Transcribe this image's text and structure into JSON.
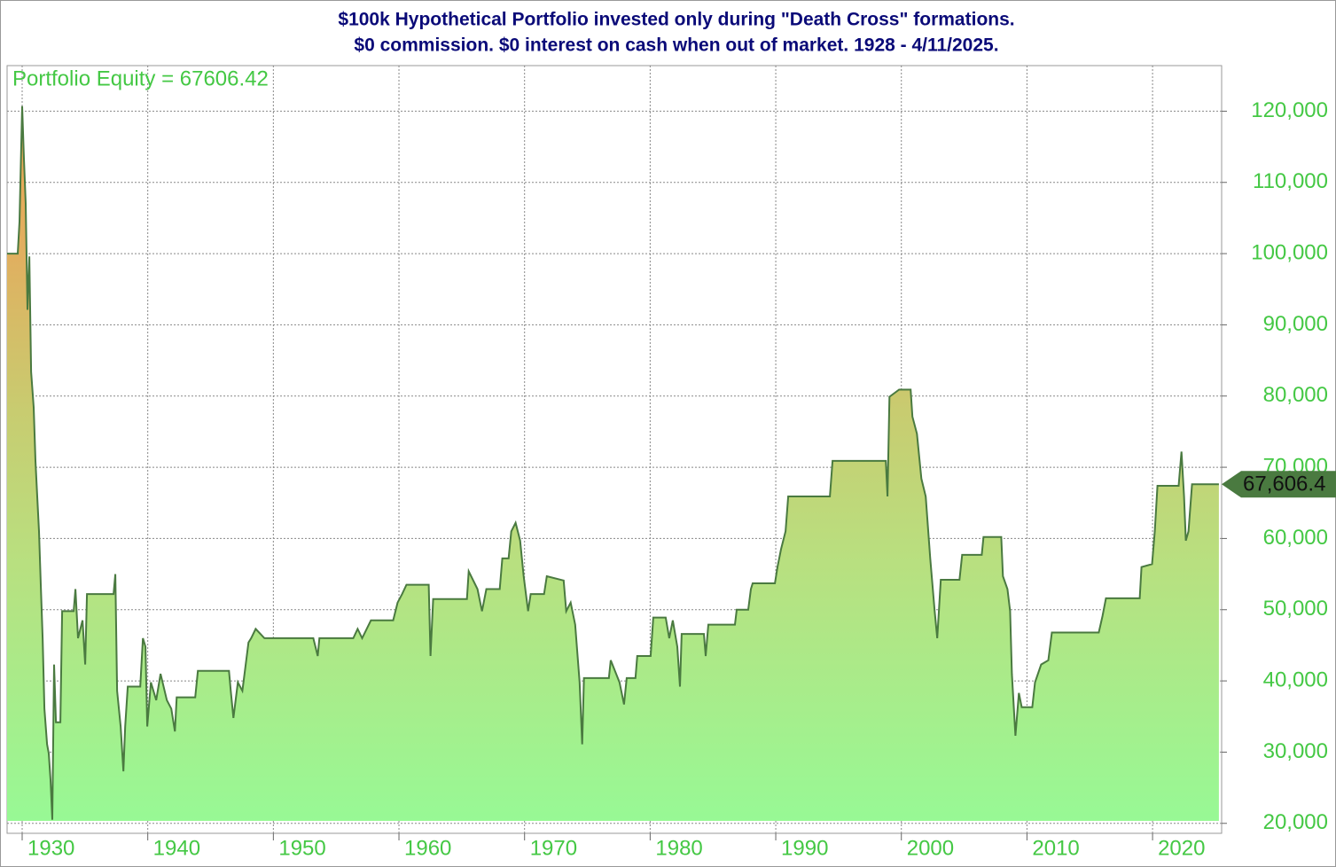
{
  "chart_data": {
    "type": "area",
    "title": "$100k Hypothetical Portfolio invested only during \"Death Cross\" formations.",
    "subtitle": "$0 commission. $0 interest on cash when out of market. 1928 - 4/11/2025.",
    "x": [
      1928.8,
      1929.65,
      1929.79,
      1930.0,
      1930.14,
      1930.28,
      1930.42,
      1930.57,
      1930.71,
      1930.92,
      1931.06,
      1931.2,
      1931.34,
      1931.48,
      1931.63,
      1931.77,
      1931.98,
      1932.12,
      1932.26,
      1932.4,
      1932.54,
      1932.69,
      1933.04,
      1933.18,
      1934.1,
      1934.24,
      1934.45,
      1934.81,
      1935.02,
      1935.16,
      1937.28,
      1937.42,
      1937.56,
      1937.84,
      1938.06,
      1938.2,
      1938.41,
      1939.4,
      1939.61,
      1939.82,
      1939.96,
      1940.25,
      1940.67,
      1941.02,
      1941.52,
      1941.87,
      1942.16,
      1942.3,
      1943.78,
      1943.99,
      1946.47,
      1946.61,
      1946.82,
      1947.17,
      1947.53,
      1948.02,
      1948.23,
      1948.59,
      1949.29,
      1953.18,
      1953.53,
      1953.67,
      1956.36,
      1956.71,
      1957.07,
      1957.77,
      1959.54,
      1959.89,
      1960.25,
      1960.6,
      1962.37,
      1962.51,
      1962.72,
      1965.41,
      1965.55,
      1966.25,
      1966.61,
      1966.96,
      1968.02,
      1968.23,
      1968.73,
      1968.94,
      1969.29,
      1969.65,
      1969.93,
      1970.28,
      1970.49,
      1971.55,
      1971.77,
      1973.11,
      1973.32,
      1973.67,
      1974.03,
      1974.38,
      1974.59,
      1974.73,
      1976.71,
      1976.86,
      1977.56,
      1977.92,
      1978.13,
      1978.83,
      1978.97,
      1980.04,
      1980.25,
      1981.24,
      1981.52,
      1981.8,
      1982.16,
      1982.37,
      1982.51,
      1984.28,
      1984.42,
      1984.63,
      1986.75,
      1986.89,
      1987.81,
      1988.02,
      1988.16,
      1989.93,
      1990.14,
      1990.42,
      1990.78,
      1990.99,
      1994.31,
      1994.52,
      1998.76,
      1998.9,
      1999.05,
      1999.82,
      2000.74,
      2000.88,
      2001.24,
      2001.59,
      2001.94,
      2002.3,
      2002.65,
      2002.86,
      2003.14,
      2004.63,
      2004.84,
      2006.4,
      2006.54,
      2007.95,
      2008.09,
      2008.45,
      2008.66,
      2008.8,
      2009.08,
      2009.36,
      2009.58,
      2010.42,
      2010.64,
      2011.13,
      2011.7,
      2011.98,
      2015.72,
      2016.01,
      2016.29,
      2018.98,
      2019.12,
      2019.96,
      2020.18,
      2020.39,
      2022.08,
      2022.3,
      2022.51,
      2022.65,
      2022.86,
      2023.14,
      2025.28
    ],
    "series": [
      {
        "name": "Portfolio Equity = 67606.42",
        "color": "#4a7a40",
        "values": [
          100000,
          100000,
          104500,
          120700,
          113300,
          107000,
          92100,
          99600,
          83400,
          78400,
          70900,
          65900,
          61000,
          53500,
          46000,
          36100,
          31100,
          29800,
          26100,
          20500,
          42300,
          34200,
          34200,
          49800,
          49800,
          52900,
          46000,
          48500,
          42300,
          52200,
          52200,
          55000,
          38600,
          33600,
          27300,
          33600,
          39200,
          39200,
          46000,
          44800,
          33600,
          39800,
          37300,
          41000,
          37300,
          36100,
          32900,
          37700,
          37700,
          41400,
          41400,
          38600,
          34800,
          39800,
          38600,
          45400,
          46000,
          47300,
          46000,
          46000,
          43500,
          46000,
          46000,
          47300,
          46000,
          48500,
          48500,
          51000,
          52200,
          53500,
          53500,
          43500,
          51500,
          51500,
          55400,
          52900,
          49800,
          52900,
          52900,
          57200,
          57200,
          61000,
          62200,
          59700,
          54700,
          49800,
          52200,
          52200,
          54700,
          54100,
          49800,
          51000,
          47900,
          39800,
          31100,
          40400,
          40400,
          42900,
          39800,
          36700,
          40400,
          40400,
          43500,
          43500,
          48900,
          48900,
          46000,
          48500,
          44800,
          39200,
          46600,
          46600,
          43500,
          47900,
          47900,
          50000,
          50000,
          52900,
          53700,
          53700,
          56000,
          58500,
          61000,
          65900,
          65900,
          70900,
          70900,
          65900,
          79900,
          80900,
          80900,
          77100,
          74700,
          68400,
          65900,
          57200,
          49800,
          46000,
          54200,
          54200,
          57700,
          57700,
          60200,
          60200,
          54700,
          52900,
          49800,
          41000,
          32300,
          38300,
          36300,
          36300,
          39800,
          42300,
          42900,
          46800,
          46800,
          49100,
          51600,
          51600,
          56000,
          56400,
          61000,
          67400,
          67400,
          72200,
          65900,
          59700,
          61000,
          67606.42,
          67606.42
        ],
        "last_value_label": "67,606.4"
      }
    ],
    "xlim": [
      1928.8,
      2025.5
    ],
    "xticks": [
      1930,
      1940,
      1950,
      1960,
      1970,
      1980,
      1990,
      2000,
      2010,
      2020
    ],
    "ylim": [
      18600,
      126400
    ],
    "yticks": [
      {
        "value": 20000,
        "label": "20,000"
      },
      {
        "value": 30000,
        "label": "30,000"
      },
      {
        "value": 40000,
        "label": "40,000"
      },
      {
        "value": 50000,
        "label": "50,000"
      },
      {
        "value": 60000,
        "label": "60,000"
      },
      {
        "value": 70000,
        "label": "70,000"
      },
      {
        "value": 80000,
        "label": "80,000"
      },
      {
        "value": 90000,
        "label": "90,000"
      },
      {
        "value": 100000,
        "label": "100,000"
      },
      {
        "value": 110000,
        "label": "110,000"
      },
      {
        "value": 120000,
        "label": "120,000"
      }
    ],
    "grid": true,
    "legend": "top-left"
  }
}
